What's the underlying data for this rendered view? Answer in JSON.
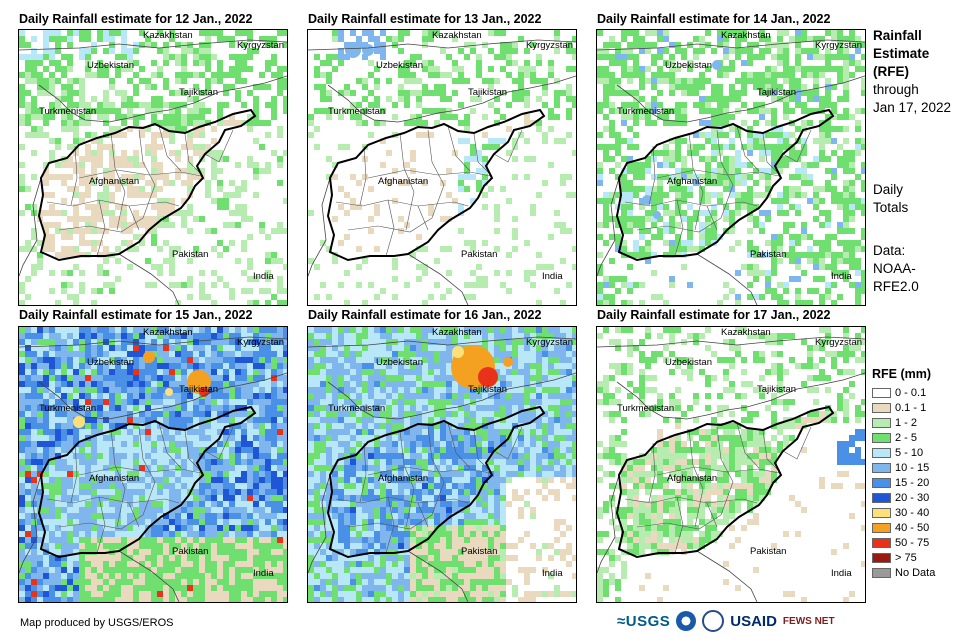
{
  "header": {
    "title": "Rainfall Estimate (RFE)",
    "title_lines": [
      "Rainfall",
      "Estimate",
      "(RFE)"
    ],
    "through_lines": [
      "through",
      "Jan 17, 2022"
    ],
    "totals_lines": [
      "Daily",
      "Totals"
    ],
    "data_lines": [
      "Data:",
      "NOAA-",
      "RFE2.0"
    ]
  },
  "panels": [
    {
      "title": "Daily Rainfall estimate for 12 Jan., 2022",
      "intensity": 0
    },
    {
      "title": "Daily Rainfall estimate for 13 Jan., 2022",
      "intensity": 1
    },
    {
      "title": "Daily Rainfall estimate for 14 Jan., 2022",
      "intensity": 2
    },
    {
      "title": "Daily Rainfall estimate for 15 Jan., 2022",
      "intensity": 4
    },
    {
      "title": "Daily Rainfall estimate for 16 Jan., 2022",
      "intensity": 5
    },
    {
      "title": "Daily Rainfall estimate for 17 Jan., 2022",
      "intensity": 3
    }
  ],
  "countries": {
    "kazakhstan": "Kazakhstan",
    "kyrgyzstan": "Kyrgyzstan",
    "uzbekistan": "Uzbekistan",
    "tajikistan": "Tajikistan",
    "turkmenistan": "Turkmenistan",
    "afghanistan": "Afghanistan",
    "pakistan": "Pakistan",
    "india": "India"
  },
  "legend": {
    "title": "RFE (mm)",
    "items": [
      {
        "label": "0 - 0.1",
        "color": "#ffffff"
      },
      {
        "label": "0.1 - 1",
        "color": "#e8d9bf"
      },
      {
        "label": "1 - 2",
        "color": "#b6ecb0"
      },
      {
        "label": "2 - 5",
        "color": "#6fe070"
      },
      {
        "label": "5 - 10",
        "color": "#b8e8f8"
      },
      {
        "label": "10 - 15",
        "color": "#7fb6ee"
      },
      {
        "label": "15 - 20",
        "color": "#4a90e6"
      },
      {
        "label": "20 - 30",
        "color": "#1f56d6"
      },
      {
        "label": "30 - 40",
        "color": "#fde07a"
      },
      {
        "label": "40 - 50",
        "color": "#f4a020"
      },
      {
        "label": "50 - 75",
        "color": "#e8331a"
      },
      {
        "label": "> 75",
        "color": "#9a1a12"
      },
      {
        "label": "No Data",
        "color": "#9a9a9a"
      }
    ]
  },
  "footer": {
    "credit": "Map produced by USGS/EROS",
    "logo_usgs": "≈USGS",
    "logo_usaid": "USAID",
    "logo_fews": "FEWS NET"
  }
}
